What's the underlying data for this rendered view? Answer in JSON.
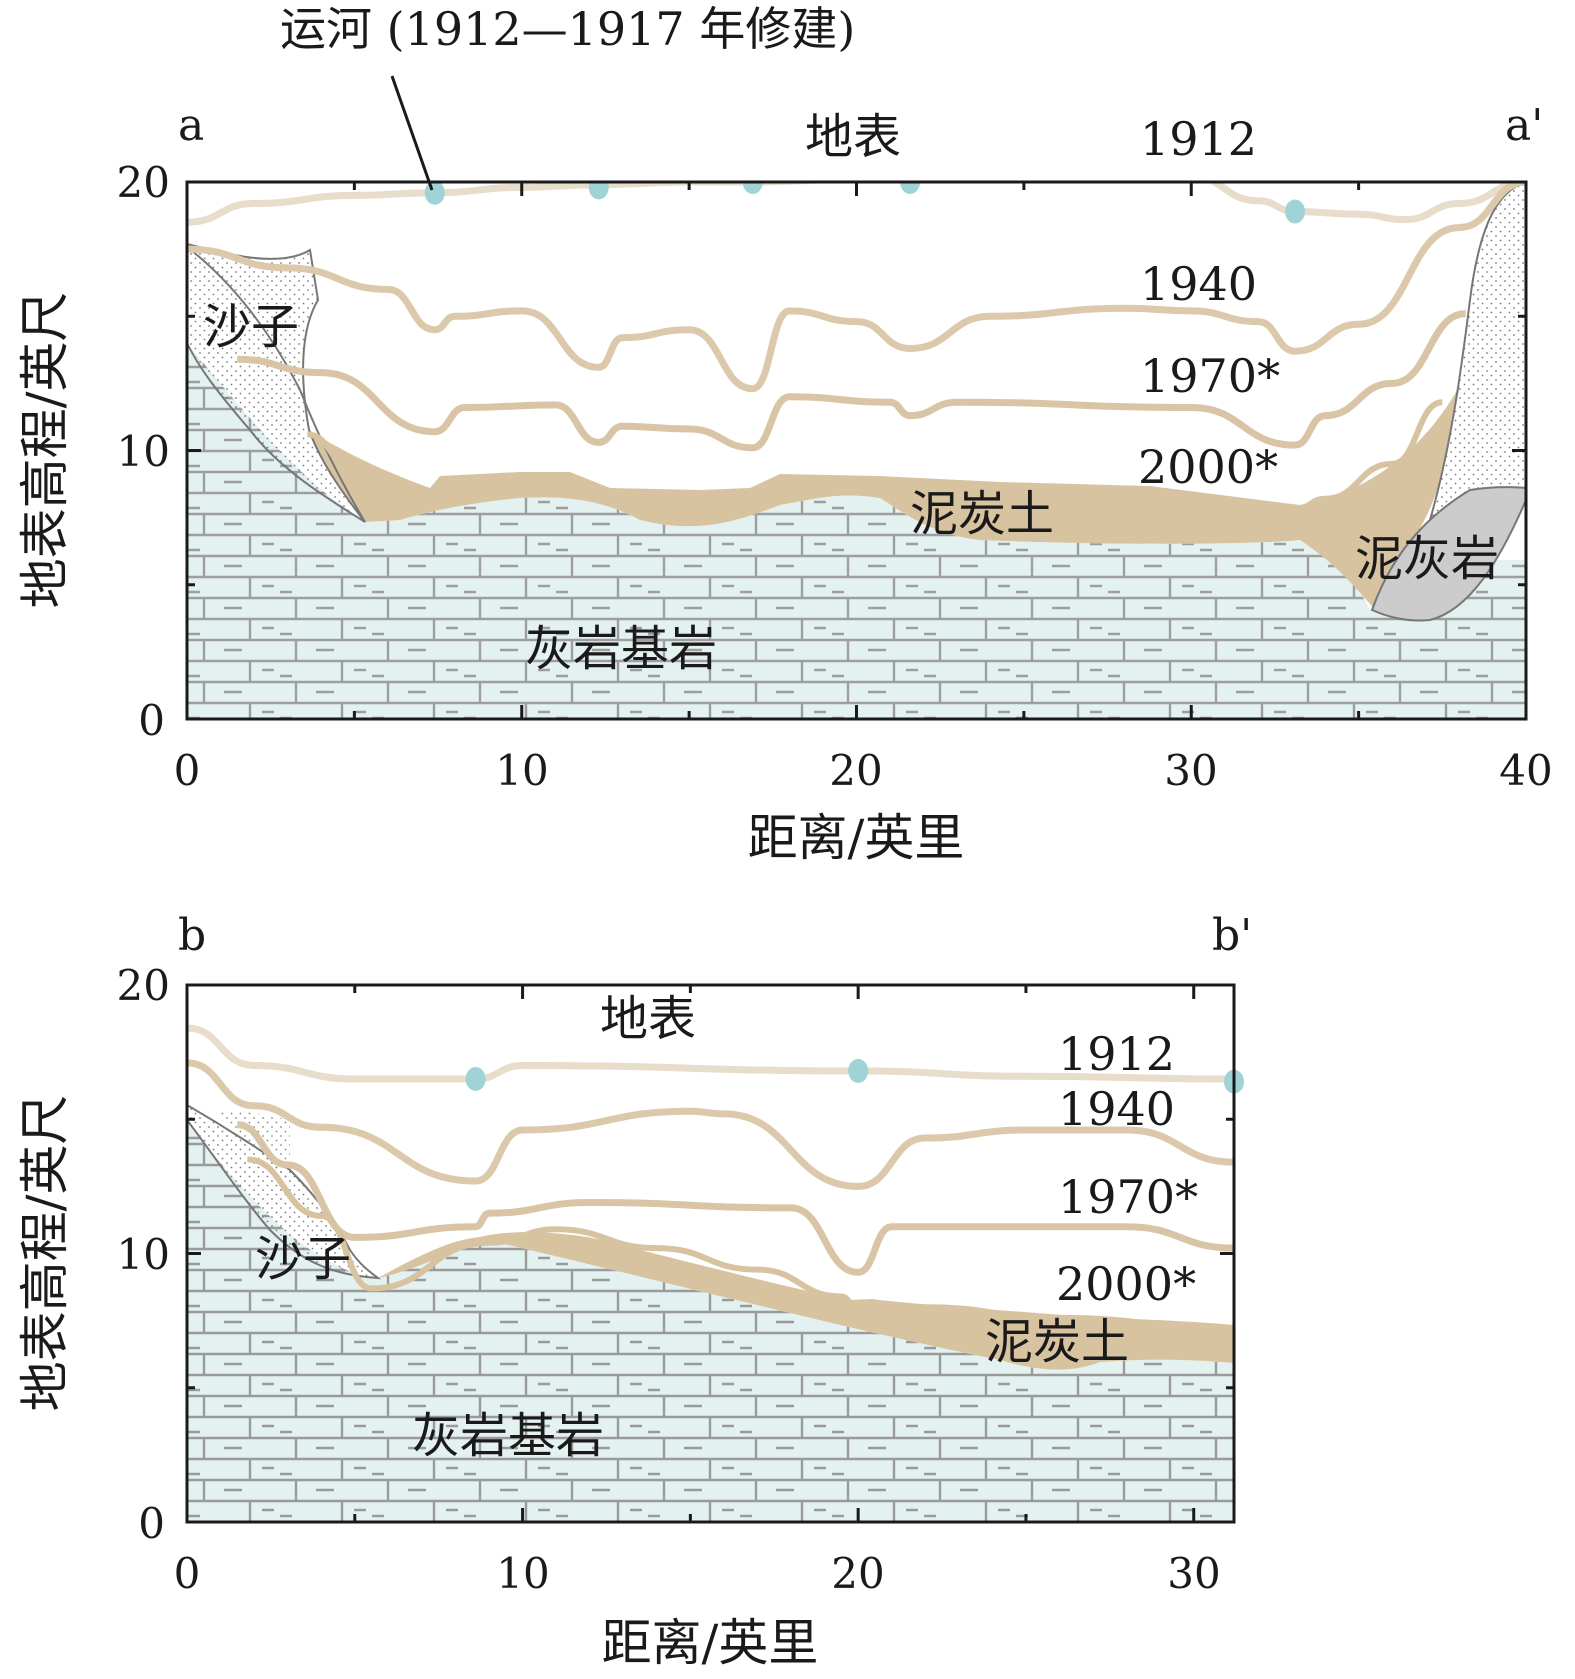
{
  "canal_label": "运河 (1912—1917 年修建)",
  "colors": {
    "limestone_fill": "#e3f1f1",
    "brick_line": "#9a9a9a",
    "peat_fill": "#d8c3a0",
    "surface_line": "#d9c7a9",
    "surface_1912": "#e8dccb",
    "canal_dot": "#9fd3d6",
    "marl_fill": "#cccccc",
    "sand_dots": "#777777"
  },
  "panel_a": {
    "start_label": "a",
    "end_label": "a'",
    "surface_label": "地表",
    "year_labels": [
      "1912",
      "1940",
      "1970*",
      "2000*"
    ],
    "peat_label": "泥炭土",
    "bedrock_label": "灰岩基岩",
    "sand_label": "沙子",
    "marl_label": "泥灰岩",
    "y_title": "地表高程/英尺",
    "x_title": "距离/英里",
    "x_ticks": [
      "0",
      "10",
      "20",
      "30",
      "40"
    ],
    "y_ticks": [
      "0",
      "10",
      "20"
    ]
  },
  "panel_b": {
    "start_label": "b",
    "end_label": "b'",
    "surface_label": "地表",
    "year_labels": [
      "1912",
      "1940",
      "1970*",
      "2000*"
    ],
    "peat_label": "泥炭土",
    "bedrock_label": "灰岩基岩",
    "sand_label": "沙子",
    "y_title": "地表高程/英尺",
    "x_title": "距离/英里",
    "x_ticks": [
      "0",
      "10",
      "20",
      "30"
    ],
    "y_ticks": [
      "0",
      "10",
      "20"
    ]
  },
  "chart_data": [
    {
      "type": "line",
      "panel": "a",
      "xlabel": "距离/英里",
      "ylabel": "地表高程/英尺",
      "xlim": [
        0,
        40
      ],
      "ylim": [
        0,
        20
      ],
      "series": [
        {
          "name": "1912",
          "x": [
            0,
            2,
            5,
            7.4,
            10,
            12.3,
            15,
            16.9,
            20,
            21.6,
            25,
            30,
            32,
            33.1,
            35,
            36.4,
            38,
            40
          ],
          "y": [
            18.5,
            19.2,
            19.5,
            19.6,
            19.8,
            19.9,
            20.0,
            20.0,
            20.1,
            20.1,
            20.2,
            20.2,
            19.3,
            18.9,
            18.8,
            18.6,
            19.2,
            20.0
          ]
        },
        {
          "name": "1940",
          "x": [
            0,
            3,
            6,
            7.4,
            8,
            10,
            12.3,
            13,
            15,
            16.9,
            18,
            20,
            21.6,
            24,
            28,
            30,
            32,
            33.1,
            35,
            38,
            40
          ],
          "y": [
            17.5,
            16.8,
            16.0,
            14.5,
            15.0,
            15.2,
            13.1,
            14.2,
            14.5,
            12.3,
            15.2,
            14.8,
            13.8,
            15.0,
            15.3,
            15.2,
            14.8,
            13.7,
            14.7,
            18.3,
            20.0
          ]
        },
        {
          "name": "1970*",
          "x": [
            1.5,
            4,
            7.4,
            8.3,
            11,
            12.3,
            13,
            15,
            16.9,
            18,
            21,
            21.6,
            23,
            30,
            33.1,
            34,
            36,
            38.2
          ],
          "y": [
            13.4,
            12.9,
            10.7,
            11.6,
            11.7,
            10.3,
            10.9,
            10.8,
            10.1,
            12.0,
            11.8,
            11.3,
            11.8,
            11.6,
            10.2,
            11.3,
            12.5,
            15.1
          ]
        },
        {
          "name": "2000*",
          "x": [
            3.6,
            5,
            7.4,
            8,
            11,
            12.3,
            13,
            16.9,
            18,
            21,
            30,
            33.1,
            34,
            36,
            37.5
          ],
          "y": [
            10.6,
            9.3,
            8.3,
            8.9,
            9.0,
            8.3,
            8.3,
            8.0,
            8.8,
            8.6,
            8.3,
            7.8,
            8.2,
            9.5,
            11.8
          ]
        }
      ],
      "canals": [
        {
          "x": 7.4,
          "y": 19.6
        },
        {
          "x": 12.3,
          "y": 19.8
        },
        {
          "x": 16.9,
          "y": 20.0
        },
        {
          "x": 21.6,
          "y": 20.0
        },
        {
          "x": 33.1,
          "y": 18.9
        }
      ]
    },
    {
      "type": "line",
      "panel": "b",
      "xlabel": "距离/英里",
      "ylabel": "地表高程/英尺",
      "xlim": [
        0,
        31.2
      ],
      "ylim": [
        0,
        20
      ],
      "series": [
        {
          "name": "1912",
          "x": [
            0,
            2,
            5,
            8.6,
            10,
            20,
            25,
            31.2
          ],
          "y": [
            18.4,
            17.0,
            16.5,
            16.5,
            17.0,
            16.8,
            16.6,
            16.5
          ]
        },
        {
          "name": "1940",
          "x": [
            0,
            2,
            4,
            8.6,
            10,
            15,
            16,
            20,
            22,
            25,
            28,
            31.2
          ],
          "y": [
            17.1,
            15.5,
            14.7,
            12.7,
            14.6,
            15.3,
            15.2,
            12.5,
            14.3,
            14.6,
            14.6,
            13.4
          ]
        },
        {
          "name": "1970*",
          "x": [
            1.5,
            3,
            5,
            8.6,
            9,
            12,
            18,
            20,
            21,
            26,
            28,
            31.2
          ],
          "y": [
            14.8,
            13.3,
            10.6,
            11.0,
            11.5,
            11.9,
            11.7,
            9.3,
            11.0,
            11.0,
            11.0,
            10.2
          ]
        },
        {
          "name": "2000*",
          "x": [
            1.8,
            4,
            5.5,
            9,
            11,
            14,
            17,
            19.5,
            20,
            22,
            26,
            31.2
          ],
          "y": [
            13.5,
            11.4,
            8.7,
            10.4,
            10.9,
            10.2,
            9.4,
            8.4,
            7.9,
            8.0,
            7.6,
            7.2
          ]
        }
      ],
      "canals": [
        {
          "x": 8.6,
          "y": 16.5
        },
        {
          "x": 20,
          "y": 16.8
        },
        {
          "x": 31.2,
          "y": 16.4
        }
      ]
    }
  ]
}
